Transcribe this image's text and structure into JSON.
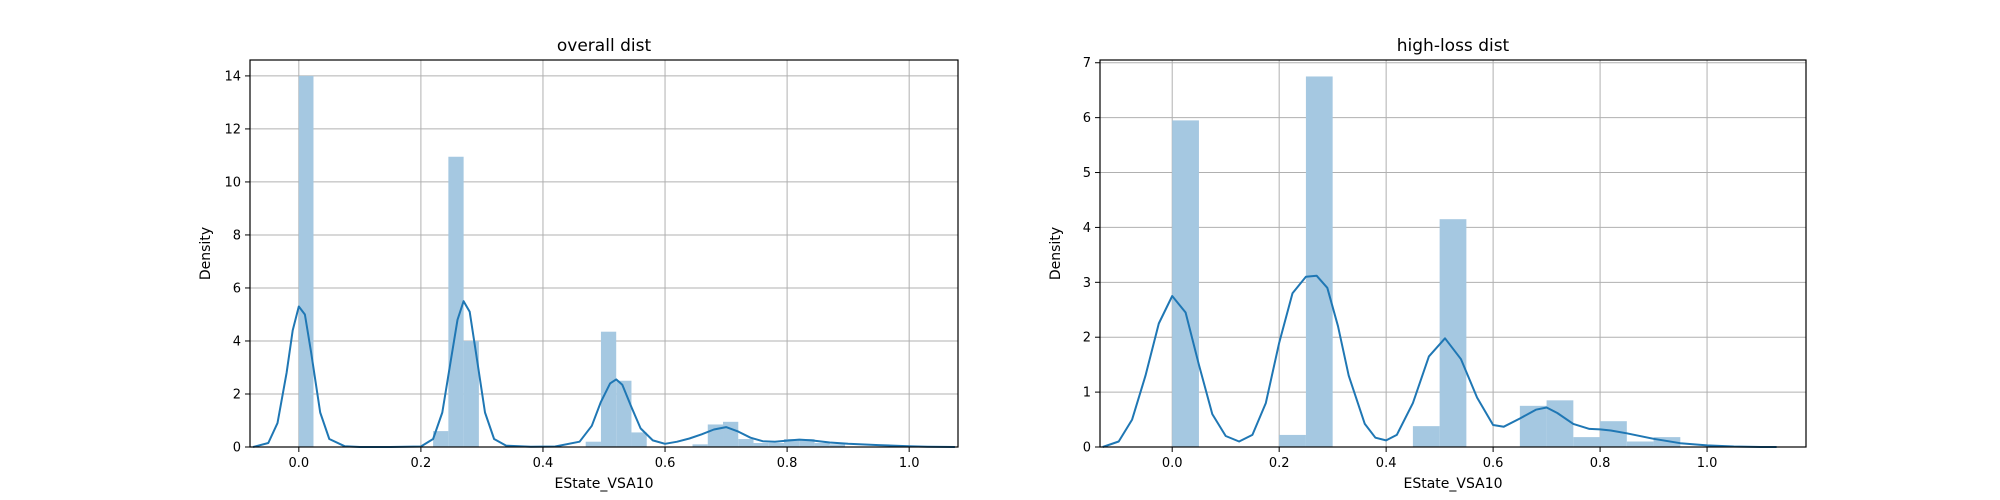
{
  "chart_data": [
    {
      "type": "bar",
      "title": "overall dist",
      "xlabel": "EState_VSA10",
      "ylabel": "Density",
      "xlim": [
        -0.08,
        1.08
      ],
      "ylim": [
        0,
        14.6
      ],
      "xticks": [
        0.0,
        0.2,
        0.4,
        0.6,
        0.8,
        1.0
      ],
      "xtick_labels": [
        "0.0",
        "0.2",
        "0.4",
        "0.6",
        "0.8",
        "1.0"
      ],
      "yticks": [
        0,
        2,
        4,
        6,
        8,
        10,
        12,
        14
      ],
      "ytick_labels": [
        "0",
        "2",
        "4",
        "6",
        "8",
        "10",
        "12",
        "14"
      ],
      "grid": true,
      "bar_color": "#a5c8e1",
      "line_color": "#1f77b4",
      "histogram": [
        {
          "x0": 0.0,
          "x1": 0.024,
          "value": 14.0
        },
        {
          "x0": 0.22,
          "x1": 0.245,
          "value": 0.6
        },
        {
          "x0": 0.245,
          "x1": 0.27,
          "value": 10.95
        },
        {
          "x0": 0.27,
          "x1": 0.295,
          "value": 4.0
        },
        {
          "x0": 0.47,
          "x1": 0.495,
          "value": 0.2
        },
        {
          "x0": 0.495,
          "x1": 0.52,
          "value": 4.35
        },
        {
          "x0": 0.52,
          "x1": 0.545,
          "value": 2.5
        },
        {
          "x0": 0.545,
          "x1": 0.57,
          "value": 0.55
        },
        {
          "x0": 0.645,
          "x1": 0.67,
          "value": 0.1
        },
        {
          "x0": 0.67,
          "x1": 0.695,
          "value": 0.85
        },
        {
          "x0": 0.695,
          "x1": 0.72,
          "value": 0.95
        },
        {
          "x0": 0.72,
          "x1": 0.745,
          "value": 0.3
        },
        {
          "x0": 0.745,
          "x1": 0.77,
          "value": 0.15
        },
        {
          "x0": 0.77,
          "x1": 0.795,
          "value": 0.15
        },
        {
          "x0": 0.795,
          "x1": 0.82,
          "value": 0.3
        },
        {
          "x0": 0.82,
          "x1": 0.845,
          "value": 0.3
        },
        {
          "x0": 0.845,
          "x1": 0.87,
          "value": 0.15
        },
        {
          "x0": 0.87,
          "x1": 0.895,
          "value": 0.1
        }
      ],
      "kde": {
        "x": [
          -0.075,
          -0.05,
          -0.035,
          -0.02,
          -0.01,
          0.0,
          0.01,
          0.02,
          0.035,
          0.05,
          0.075,
          0.1,
          0.15,
          0.2,
          0.22,
          0.235,
          0.25,
          0.26,
          0.27,
          0.28,
          0.29,
          0.305,
          0.32,
          0.34,
          0.38,
          0.42,
          0.46,
          0.48,
          0.495,
          0.51,
          0.52,
          0.53,
          0.545,
          0.56,
          0.58,
          0.6,
          0.62,
          0.64,
          0.66,
          0.68,
          0.7,
          0.72,
          0.74,
          0.76,
          0.78,
          0.8,
          0.82,
          0.84,
          0.87,
          0.9,
          0.95,
          1.0,
          1.03,
          1.075
        ],
        "y": [
          0.0,
          0.15,
          0.9,
          2.8,
          4.4,
          5.3,
          5.0,
          3.6,
          1.3,
          0.3,
          0.03,
          0.0,
          0.0,
          0.02,
          0.3,
          1.3,
          3.4,
          4.8,
          5.5,
          5.1,
          3.6,
          1.3,
          0.3,
          0.05,
          0.01,
          0.02,
          0.2,
          0.8,
          1.7,
          2.4,
          2.55,
          2.35,
          1.5,
          0.7,
          0.25,
          0.12,
          0.2,
          0.32,
          0.48,
          0.66,
          0.75,
          0.58,
          0.35,
          0.22,
          0.2,
          0.24,
          0.28,
          0.25,
          0.17,
          0.12,
          0.07,
          0.03,
          0.01,
          0.0
        ]
      }
    },
    {
      "type": "bar",
      "title": "high-loss dist",
      "xlabel": "EState_VSA10",
      "ylabel": "Density",
      "xlim": [
        -0.135,
        1.185
      ],
      "ylim": [
        0,
        7.05
      ],
      "xticks": [
        0.0,
        0.2,
        0.4,
        0.6,
        0.8,
        1.0
      ],
      "xtick_labels": [
        "0.0",
        "0.2",
        "0.4",
        "0.6",
        "0.8",
        "1.0"
      ],
      "yticks": [
        0,
        1,
        2,
        3,
        4,
        5,
        6,
        7
      ],
      "ytick_labels": [
        "0",
        "1",
        "2",
        "3",
        "4",
        "5",
        "6",
        "7"
      ],
      "grid": true,
      "bar_color": "#a5c8e1",
      "line_color": "#1f77b4",
      "histogram": [
        {
          "x0": 0.0,
          "x1": 0.05,
          "value": 5.95
        },
        {
          "x0": 0.2,
          "x1": 0.25,
          "value": 0.22
        },
        {
          "x0": 0.25,
          "x1": 0.3,
          "value": 6.75
        },
        {
          "x0": 0.45,
          "x1": 0.5,
          "value": 0.38
        },
        {
          "x0": 0.5,
          "x1": 0.55,
          "value": 4.15
        },
        {
          "x0": 0.65,
          "x1": 0.7,
          "value": 0.75
        },
        {
          "x0": 0.7,
          "x1": 0.75,
          "value": 0.85
        },
        {
          "x0": 0.75,
          "x1": 0.8,
          "value": 0.18
        },
        {
          "x0": 0.8,
          "x1": 0.85,
          "value": 0.47
        },
        {
          "x0": 0.85,
          "x1": 0.9,
          "value": 0.1
        },
        {
          "x0": 0.9,
          "x1": 0.95,
          "value": 0.18
        }
      ],
      "kde": {
        "x": [
          -0.13,
          -0.1,
          -0.075,
          -0.05,
          -0.025,
          0.0,
          0.025,
          0.05,
          0.075,
          0.1,
          0.125,
          0.15,
          0.175,
          0.2,
          0.225,
          0.25,
          0.27,
          0.29,
          0.31,
          0.33,
          0.36,
          0.38,
          0.4,
          0.42,
          0.45,
          0.48,
          0.51,
          0.54,
          0.57,
          0.6,
          0.62,
          0.65,
          0.68,
          0.7,
          0.72,
          0.75,
          0.78,
          0.8,
          0.82,
          0.85,
          0.9,
          0.95,
          1.0,
          1.05,
          1.1,
          1.13
        ],
        "y": [
          0.0,
          0.1,
          0.5,
          1.3,
          2.25,
          2.75,
          2.45,
          1.5,
          0.6,
          0.2,
          0.1,
          0.22,
          0.8,
          1.9,
          2.8,
          3.1,
          3.12,
          2.9,
          2.2,
          1.3,
          0.42,
          0.17,
          0.12,
          0.22,
          0.8,
          1.65,
          1.98,
          1.6,
          0.9,
          0.4,
          0.37,
          0.52,
          0.68,
          0.72,
          0.62,
          0.42,
          0.33,
          0.32,
          0.3,
          0.25,
          0.15,
          0.07,
          0.03,
          0.01,
          0.0,
          0.0
        ]
      }
    }
  ]
}
